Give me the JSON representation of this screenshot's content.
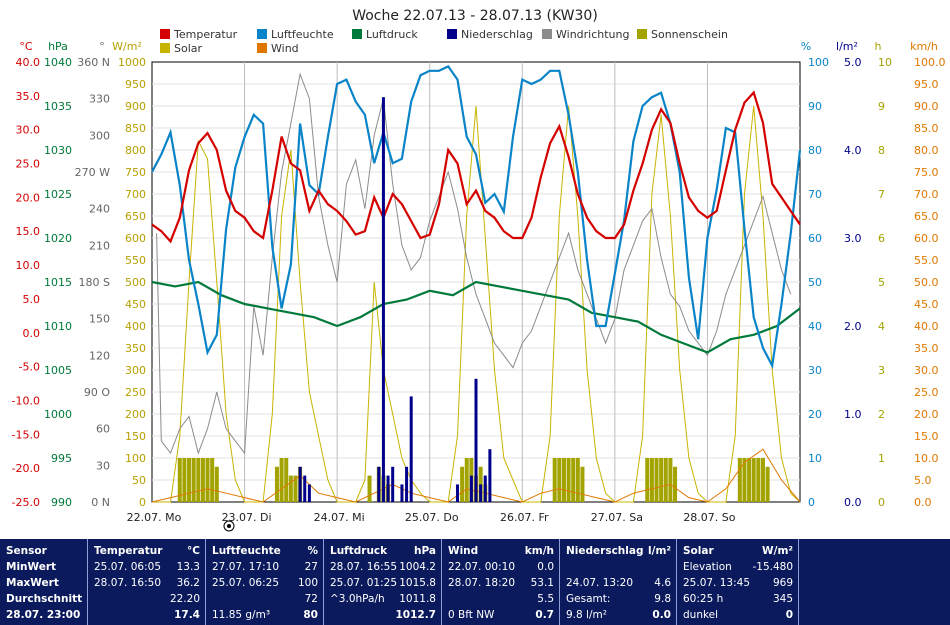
{
  "chart_data": {
    "type": "line",
    "title": "Woche 22.07.13 - 28.07.13 (KW30)",
    "legend": [
      {
        "name": "Temperatur",
        "color": "#d40000"
      },
      {
        "name": "Luftfeuchte",
        "color": "#0a84c8"
      },
      {
        "name": "Luftdruck",
        "color": "#007a3a"
      },
      {
        "name": "Niederschlag",
        "color": "#00008b"
      },
      {
        "name": "Windrichtung",
        "color": "#8c8c8c"
      },
      {
        "name": "Sonnenschein",
        "color": "#a3a300"
      },
      {
        "name": "Solar",
        "color": "#c8b400"
      },
      {
        "name": "Wind",
        "color": "#e07800"
      }
    ],
    "axes": [
      {
        "unit": "°C",
        "color": "#d40000",
        "ticks": [
          "40.0",
          "35.0",
          "30.0",
          "25.0",
          "20.0",
          "15.0",
          "10.0",
          "5.0",
          "0.0",
          "-5.0",
          "-10.0",
          "-15.0",
          "-20.0",
          "-25.0"
        ],
        "range": [
          -25,
          40
        ]
      },
      {
        "unit": "hPa",
        "color": "#007a3a",
        "ticks": [
          "1040",
          "1035",
          "1030",
          "1025",
          "1020",
          "1015",
          "1010",
          "1005",
          "1000",
          "995",
          "990"
        ],
        "range": [
          990,
          1040
        ]
      },
      {
        "unit": "°",
        "color": "#666666",
        "ticks": [
          "360 N",
          "330",
          "300",
          "270 W",
          "240",
          "210",
          "180 S",
          "150",
          "120",
          "90 O",
          "60",
          "30",
          "0 N"
        ],
        "range": [
          0,
          360
        ]
      },
      {
        "unit": "W/m²",
        "color": "#b8a000",
        "ticks": [
          "1000",
          "950",
          "900",
          "850",
          "800",
          "750",
          "700",
          "650",
          "600",
          "550",
          "500",
          "450",
          "400",
          "350",
          "300",
          "250",
          "200",
          "150",
          "100",
          "50",
          "0"
        ],
        "range": [
          0,
          1000
        ]
      },
      {
        "unit": "%",
        "color": "#0a84c8",
        "ticks": [
          "100",
          "90",
          "80",
          "70",
          "60",
          "50",
          "40",
          "30",
          "20",
          "10",
          "0"
        ],
        "range": [
          0,
          100
        ]
      },
      {
        "unit": "l/m²",
        "color": "#00008b",
        "ticks": [
          "5.0",
          "4.0",
          "3.0",
          "2.0",
          "1.0",
          "0.0"
        ],
        "range": [
          0,
          5
        ]
      },
      {
        "unit": "h",
        "color": "#a3a300",
        "ticks": [
          "10",
          "9",
          "8",
          "7",
          "6",
          "5",
          "4",
          "3",
          "2",
          "1",
          "0"
        ],
        "range": [
          0,
          10
        ]
      },
      {
        "unit": "km/h",
        "color": "#e07800",
        "ticks": [
          "100.0",
          "95.0",
          "90.0",
          "85.0",
          "80.0",
          "75.0",
          "70.0",
          "65.0",
          "60.0",
          "55.0",
          "50.0",
          "45.0",
          "40.0",
          "35.0",
          "30.0",
          "25.0",
          "20.0",
          "15.0",
          "10.0",
          "5.0",
          "0.0"
        ],
        "range": [
          0,
          100
        ]
      }
    ],
    "x_ticks": [
      "22.07. Mo",
      "23.07. Di",
      "24.07. Mi",
      "25.07. Do",
      "26.07. Fr",
      "27.07. Sa",
      "28.07. So"
    ],
    "x_range": [
      0,
      7
    ],
    "grid": true,
    "series": [
      {
        "name": "Temperatur",
        "axis": 0,
        "color": "#d40000",
        "x": [
          0,
          0.1,
          0.2,
          0.3,
          0.4,
          0.5,
          0.6,
          0.7,
          0.8,
          0.9,
          1,
          1.1,
          1.2,
          1.3,
          1.4,
          1.5,
          1.6,
          1.7,
          1.8,
          1.9,
          2,
          2.1,
          2.2,
          2.3,
          2.4,
          2.5,
          2.6,
          2.7,
          2.8,
          2.9,
          3,
          3.1,
          3.2,
          3.3,
          3.4,
          3.5,
          3.6,
          3.7,
          3.8,
          3.9,
          4,
          4.1,
          4.2,
          4.3,
          4.4,
          4.5,
          4.6,
          4.7,
          4.8,
          4.9,
          5,
          5.1,
          5.2,
          5.3,
          5.4,
          5.5,
          5.6,
          5.7,
          5.8,
          5.9,
          6,
          6.1,
          6.2,
          6.3,
          6.4,
          6.5,
          6.6,
          6.7,
          6.8,
          6.9,
          7
        ],
        "y": [
          16,
          15,
          13.5,
          17,
          24,
          28,
          29.5,
          27,
          21,
          18,
          17,
          15,
          14,
          21,
          29,
          25,
          24,
          18,
          21,
          19,
          18,
          16.5,
          14.5,
          15,
          20,
          17,
          20.5,
          19,
          16.5,
          14,
          14.5,
          19,
          27,
          25,
          19,
          21,
          18,
          17,
          15,
          14,
          14,
          17,
          23,
          28,
          30.5,
          26,
          20.5,
          17,
          15,
          14,
          14,
          16,
          21,
          25,
          30,
          33,
          31,
          25,
          20,
          18,
          17,
          18,
          24,
          30,
          34,
          35.5,
          31,
          22,
          20,
          18,
          16
        ]
      },
      {
        "name": "Luftfeuchte",
        "axis": 4,
        "color": "#0a84c8",
        "x": [
          0,
          0.1,
          0.2,
          0.3,
          0.4,
          0.5,
          0.6,
          0.7,
          0.8,
          0.9,
          1,
          1.1,
          1.2,
          1.3,
          1.4,
          1.5,
          1.6,
          1.7,
          1.8,
          1.9,
          2,
          2.1,
          2.2,
          2.3,
          2.4,
          2.5,
          2.6,
          2.7,
          2.8,
          2.9,
          3,
          3.1,
          3.2,
          3.3,
          3.4,
          3.5,
          3.6,
          3.7,
          3.8,
          3.9,
          4,
          4.1,
          4.2,
          4.3,
          4.4,
          4.5,
          4.6,
          4.7,
          4.8,
          4.9,
          5,
          5.1,
          5.2,
          5.3,
          5.4,
          5.5,
          5.6,
          5.7,
          5.8,
          5.9,
          6,
          6.1,
          6.2,
          6.3,
          6.4,
          6.5,
          6.6,
          6.7,
          6.8,
          6.9,
          7
        ],
        "y": [
          75,
          79,
          84,
          72,
          55,
          45,
          34,
          38,
          62,
          76,
          83,
          88,
          86,
          58,
          44,
          54,
          86,
          72,
          70,
          83,
          95,
          96,
          91,
          88,
          77,
          84,
          77,
          78,
          91,
          97,
          98,
          98,
          99,
          96,
          83,
          79,
          68,
          70,
          66,
          83,
          96,
          95,
          96,
          98,
          98,
          88,
          75,
          55,
          40,
          40,
          52,
          64,
          82,
          90,
          92,
          93,
          86,
          75,
          51,
          37,
          60,
          71,
          85,
          84,
          62,
          42,
          35,
          31,
          45,
          61,
          80
        ]
      },
      {
        "name": "Luftdruck",
        "axis": 1,
        "color": "#007a3a",
        "x": [
          0,
          0.25,
          0.5,
          0.75,
          1,
          1.25,
          1.5,
          1.75,
          2,
          2.25,
          2.5,
          2.75,
          3,
          3.25,
          3.5,
          3.75,
          4,
          4.25,
          4.5,
          4.75,
          5,
          5.25,
          5.5,
          5.75,
          6,
          6.25,
          6.5,
          6.75,
          7
        ],
        "y": [
          1015,
          1014.5,
          1015,
          1013.5,
          1012.5,
          1012,
          1011.5,
          1011,
          1010,
          1011,
          1012.5,
          1013,
          1014,
          1013.5,
          1015,
          1014.5,
          1014,
          1013.5,
          1013,
          1011.5,
          1011,
          1010.5,
          1009,
          1008,
          1007,
          1008.5,
          1009,
          1010,
          1012
        ]
      },
      {
        "name": "Windrichtung",
        "axis": 2,
        "color": "#8c8c8c",
        "x": [
          0.05,
          0.1,
          0.2,
          0.3,
          0.4,
          0.5,
          0.6,
          0.7,
          0.8,
          0.9,
          1,
          1.1,
          1.2,
          1.3,
          1.4,
          1.5,
          1.6,
          1.7,
          1.8,
          1.9,
          2,
          2.1,
          2.2,
          2.3,
          2.4,
          2.5,
          2.6,
          2.7,
          2.8,
          2.9,
          3,
          3.1,
          3.2,
          3.3,
          3.4,
          3.5,
          3.6,
          3.7,
          3.8,
          3.9,
          4,
          4.1,
          4.2,
          4.3,
          4.4,
          4.5,
          4.6,
          4.7,
          4.8,
          4.9,
          5,
          5.1,
          5.2,
          5.3,
          5.4,
          5.5,
          5.6,
          5.7,
          5.8,
          5.9,
          6,
          6.1,
          6.2,
          6.3,
          6.4,
          6.5,
          6.6,
          6.7,
          6.8,
          6.9
        ],
        "y": [
          220,
          50,
          40,
          60,
          70,
          40,
          60,
          90,
          60,
          50,
          40,
          160,
          120,
          200,
          270,
          310,
          350,
          330,
          250,
          210,
          180,
          260,
          280,
          240,
          300,
          330,
          260,
          210,
          190,
          200,
          230,
          250,
          270,
          240,
          200,
          170,
          150,
          130,
          120,
          110,
          130,
          140,
          160,
          180,
          200,
          220,
          190,
          170,
          150,
          130,
          150,
          190,
          210,
          230,
          240,
          200,
          170,
          160,
          140,
          130,
          120,
          140,
          170,
          190,
          210,
          230,
          250,
          220,
          190,
          170
        ]
      },
      {
        "name": "Solar",
        "axis": 3,
        "color": "#c8b400",
        "x": [
          0,
          0.2,
          0.3,
          0.4,
          0.5,
          0.6,
          0.7,
          0.8,
          0.9,
          1,
          1.2,
          1.3,
          1.4,
          1.5,
          1.6,
          1.7,
          1.8,
          1.9,
          2,
          2.2,
          2.3,
          2.4,
          2.5,
          2.6,
          2.7,
          2.8,
          2.9,
          3,
          3.2,
          3.3,
          3.4,
          3.5,
          3.6,
          3.7,
          3.8,
          3.9,
          4,
          4.2,
          4.3,
          4.4,
          4.5,
          4.6,
          4.7,
          4.8,
          4.9,
          5,
          5.2,
          5.3,
          5.4,
          5.5,
          5.6,
          5.7,
          5.8,
          5.9,
          6,
          6.2,
          6.3,
          6.4,
          6.5,
          6.6,
          6.7,
          6.8,
          6.9,
          7
        ],
        "y": [
          0,
          0,
          150,
          500,
          820,
          780,
          500,
          200,
          50,
          0,
          0,
          200,
          650,
          800,
          500,
          250,
          150,
          50,
          0,
          0,
          50,
          500,
          300,
          200,
          100,
          50,
          20,
          0,
          0,
          150,
          650,
          900,
          600,
          300,
          100,
          50,
          0,
          0,
          150,
          650,
          900,
          650,
          300,
          100,
          20,
          0,
          0,
          150,
          700,
          880,
          650,
          300,
          100,
          20,
          0,
          0,
          150,
          700,
          900,
          650,
          300,
          100,
          20,
          0
        ]
      },
      {
        "name": "Sonnenschein",
        "axis": 6,
        "type": "bar",
        "color": "#a3a300",
        "x": [
          0.3,
          0.35,
          0.4,
          0.45,
          0.5,
          0.55,
          0.6,
          0.65,
          0.7,
          1.35,
          1.4,
          1.45,
          1.5,
          1.55,
          1.6,
          2.35,
          2.45,
          2.5,
          2.55,
          3.35,
          3.4,
          3.45,
          3.5,
          3.55,
          3.6,
          4.35,
          4.4,
          4.45,
          4.5,
          4.55,
          4.6,
          4.65,
          5.35,
          5.4,
          5.45,
          5.5,
          5.55,
          5.6,
          5.65,
          6.35,
          6.4,
          6.45,
          6.5,
          6.55,
          6.6,
          6.65
        ],
        "y": [
          1,
          1,
          1,
          1,
          1,
          1,
          1,
          1,
          0.8,
          0.8,
          1,
          1,
          0.6,
          0.6,
          0.8,
          0.6,
          0.8,
          0.6,
          0.4,
          0.8,
          1,
          1,
          0.6,
          0.8,
          0.4,
          1,
          1,
          1,
          1,
          1,
          1,
          0.8,
          1,
          1,
          1,
          1,
          1,
          1,
          0.8,
          1,
          1,
          1,
          1,
          1,
          1,
          0.8
        ]
      },
      {
        "name": "Niederschlag",
        "axis": 5,
        "type": "bar",
        "color": "#00008b",
        "x": [
          1.6,
          1.65,
          1.7,
          2.45,
          2.5,
          2.55,
          2.6,
          2.7,
          2.75,
          2.8,
          3.3,
          3.45,
          3.5,
          3.55,
          3.6,
          3.65
        ],
        "y": [
          0.4,
          0.3,
          0.2,
          0.4,
          4.6,
          0.3,
          0.4,
          0.2,
          0.4,
          1.2,
          0.2,
          0.3,
          1.4,
          0.2,
          0.3,
          0.6
        ]
      },
      {
        "name": "Wind",
        "axis": 7,
        "color": "#e07800",
        "x": [
          0,
          0.2,
          0.4,
          0.6,
          0.8,
          1,
          1.2,
          1.4,
          1.6,
          1.8,
          2,
          2.2,
          2.4,
          2.6,
          2.8,
          3,
          3.2,
          3.4,
          3.6,
          3.8,
          4,
          4.2,
          4.4,
          4.6,
          4.8,
          5,
          5.2,
          5.4,
          5.6,
          5.8,
          6,
          6.2,
          6.4,
          6.6,
          6.8,
          7
        ],
        "y": [
          0,
          1,
          2,
          3,
          2,
          1,
          0,
          3,
          6,
          2,
          1,
          0,
          2,
          4,
          2,
          1,
          0,
          3,
          2,
          1,
          0,
          2,
          3,
          2,
          1,
          0,
          2,
          3,
          4,
          1,
          0,
          3,
          9,
          12,
          5,
          0
        ]
      }
    ]
  },
  "stats": {
    "cols": [
      {
        "title": "Sensor",
        "unit": "",
        "rows": [
          {
            "a": "MinWert",
            "b": ""
          },
          {
            "a": "MaxWert",
            "b": ""
          },
          {
            "a": "Durchschnitt",
            "b": ""
          },
          {
            "a": "28.07. 23:00",
            "b": ""
          }
        ]
      },
      {
        "title": "Temperatur",
        "unit": "°C",
        "rows": [
          {
            "a": "25.07.  06:05",
            "b": "13.3"
          },
          {
            "a": "28.07.  16:50",
            "b": "36.2"
          },
          {
            "a": "",
            "b": "22.20"
          },
          {
            "a": "",
            "b": "17.4"
          }
        ]
      },
      {
        "title": "Luftfeuchte",
        "unit": "%",
        "rows": [
          {
            "a": "27.07.  17:10",
            "b": "27"
          },
          {
            "a": "25.07.  06:25",
            "b": "100"
          },
          {
            "a": "",
            "b": "72"
          },
          {
            "a": "11.85 g/m³",
            "b": "80"
          }
        ]
      },
      {
        "title": "Luftdruck",
        "unit": "hPa",
        "rows": [
          {
            "a": "28.07.  16:55",
            "b": "1004.2"
          },
          {
            "a": "25.07.  01:25",
            "b": "1015.8"
          },
          {
            "a": "^3.0hPa/h",
            "b": "1011.8"
          },
          {
            "a": "",
            "b": "1012.7"
          }
        ]
      },
      {
        "title": "Wind",
        "unit": "km/h",
        "rows": [
          {
            "a": "22.07.  00:10",
            "b": "0.0"
          },
          {
            "a": "28.07.  18:20",
            "b": "53.1"
          },
          {
            "a": "",
            "b": "5.5"
          },
          {
            "a": "0 Bft NW",
            "b": "0.7"
          }
        ]
      },
      {
        "title": "Niederschlag",
        "unit": "l/m²",
        "rows": [
          {
            "a": "",
            "b": ""
          },
          {
            "a": "24.07.  13:20",
            "b": "4.6"
          },
          {
            "a": "Gesamt:",
            "b": "9.8"
          },
          {
            "a": "9.8 l/m²",
            "b": "0.0"
          }
        ]
      },
      {
        "title": "Solar",
        "unit": "W/m²",
        "rows": [
          {
            "a": "Elevation",
            "b": "-15.480"
          },
          {
            "a": "25.07.  13:45",
            "b": "969"
          },
          {
            "a": "60:25 h",
            "b": "345"
          },
          {
            "a": "dunkel",
            "b": "0"
          }
        ]
      }
    ]
  }
}
